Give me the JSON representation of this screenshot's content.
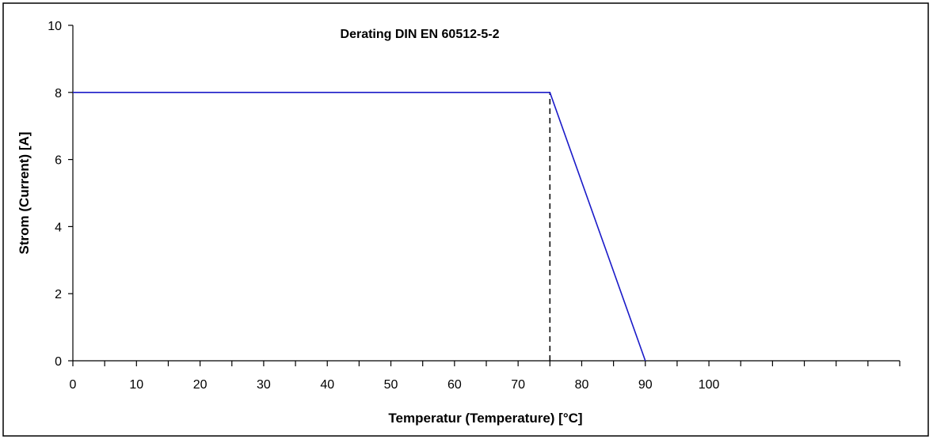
{
  "chart_data": {
    "type": "line",
    "title": "Derating DIN EN 60512-5-2",
    "xlabel": "Temperatur (Temperature) [°C]",
    "ylabel": "Strom (Current) [A]",
    "xlim": [
      0,
      130
    ],
    "ylim": [
      0,
      10
    ],
    "x_ticks": [
      0,
      10,
      20,
      30,
      40,
      50,
      60,
      70,
      80,
      90,
      100
    ],
    "x_minor_ticks": [
      0,
      5,
      10,
      15,
      20,
      25,
      30,
      35,
      40,
      45,
      50,
      55,
      60,
      65,
      70,
      75,
      80,
      85,
      90,
      95,
      100,
      105,
      110,
      115,
      120,
      125,
      130
    ],
    "y_ticks": [
      0,
      2,
      4,
      6,
      8,
      10
    ],
    "grid": false,
    "series": [
      {
        "x": [
          0,
          75,
          90
        ],
        "y": [
          8,
          8,
          0
        ],
        "color": "#1a1ac8"
      }
    ],
    "reference_lines": [
      {
        "type": "vertical",
        "x": 75,
        "y_from": 0,
        "y_to": 8,
        "style": "dashed",
        "color": "#000000"
      }
    ]
  }
}
